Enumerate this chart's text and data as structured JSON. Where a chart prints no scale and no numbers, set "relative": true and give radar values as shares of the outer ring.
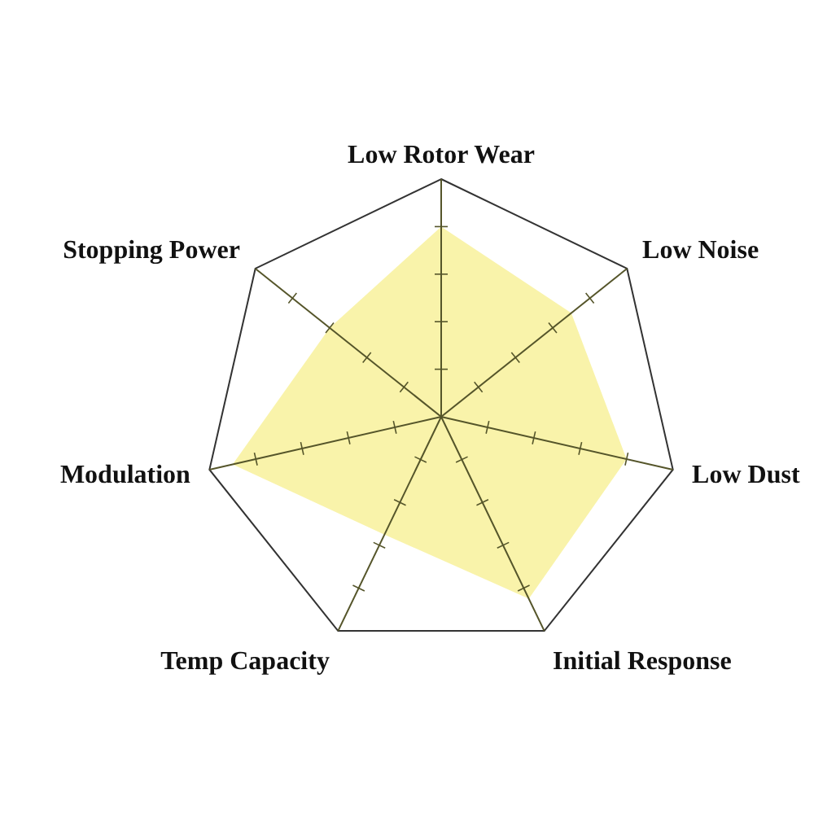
{
  "chart_data": {
    "type": "radar",
    "relative": true,
    "grid": true,
    "categories": [
      "Low Rotor Wear",
      "Low Noise",
      "Low Dust",
      "Initial Response",
      "Temp Capacity",
      "Modulation",
      "Stopping Power"
    ],
    "series": [
      {
        "color": "#f9f3aa",
        "values": [
          0.8,
          0.7,
          0.8,
          0.85,
          0.55,
          0.9,
          0.6
        ]
      }
    ]
  }
}
